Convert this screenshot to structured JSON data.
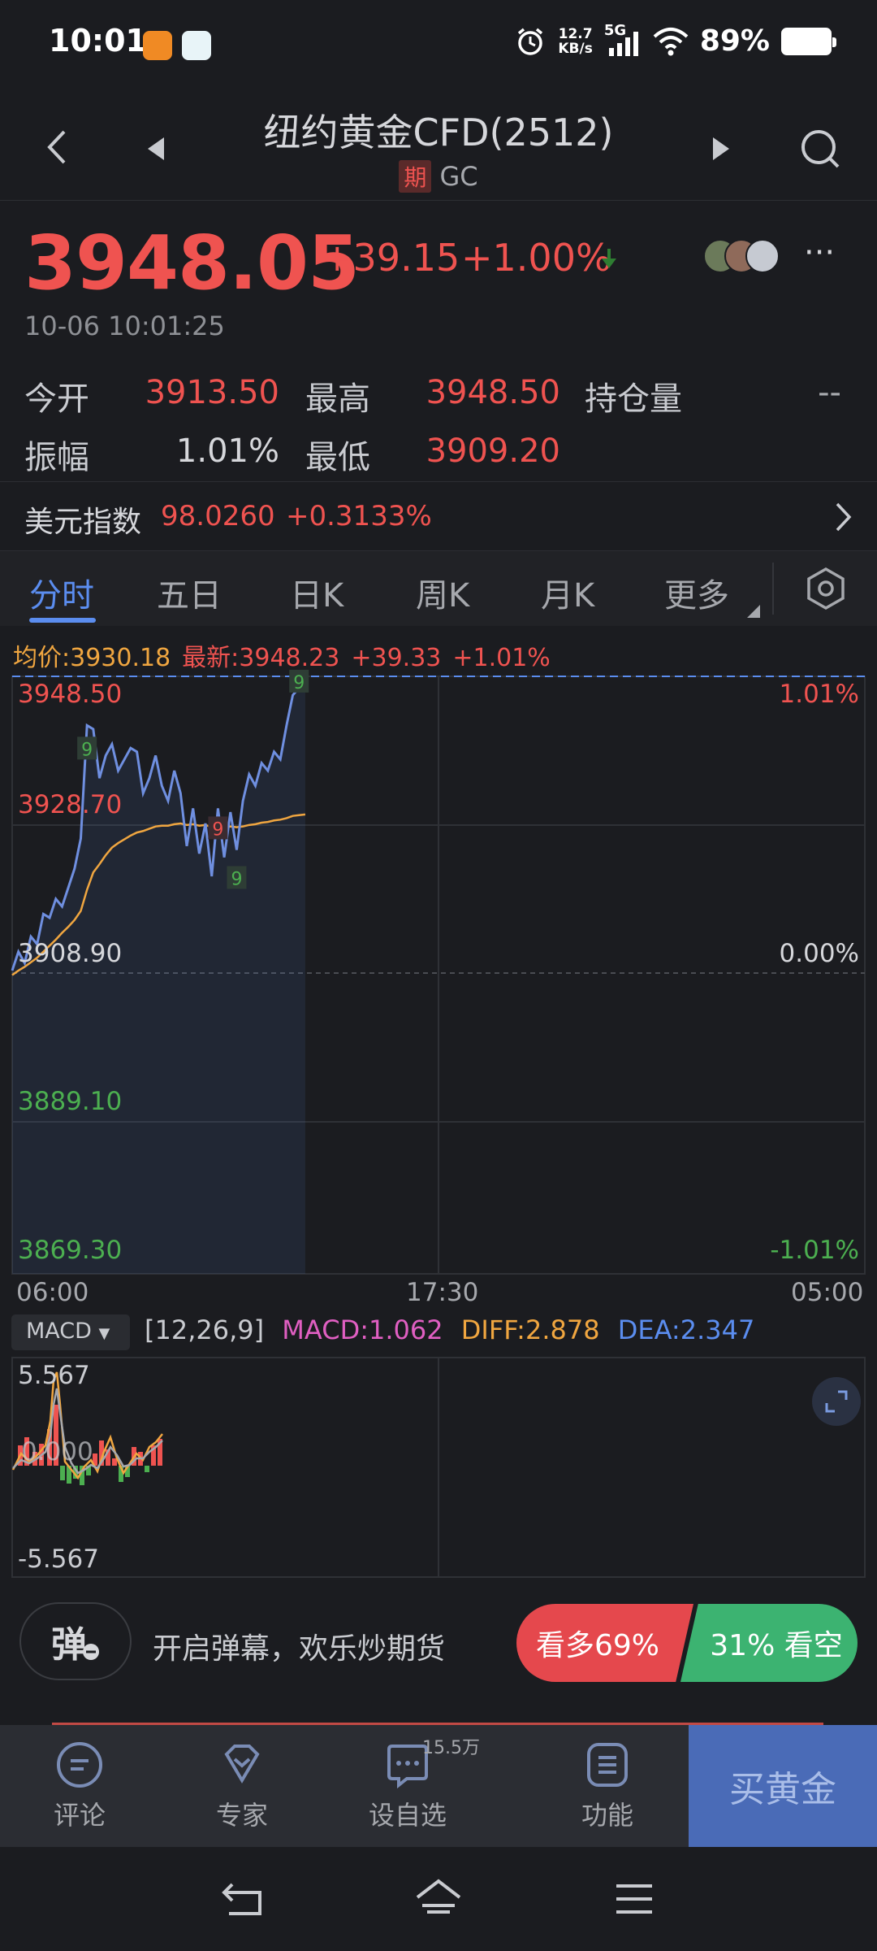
{
  "status_bar": {
    "time": "10:01",
    "net_speed_value": "12.7",
    "net_speed_unit": "KB/s",
    "network": "5G",
    "battery": "89%"
  },
  "header": {
    "title": "纽约黄金CFD(2512)",
    "tag": "期",
    "code": "GC"
  },
  "quote": {
    "last_price": "3948.05",
    "change": "+39.15",
    "change_pct": "+1.00%",
    "timestamp": "10-06 10:01:25",
    "stats": {
      "open_label": "今开",
      "open": "3913.50",
      "high_label": "最高",
      "high": "3948.50",
      "oi_label": "持仓量",
      "oi": "--",
      "amplitude_label": "振幅",
      "amplitude": "1.01%",
      "low_label": "最低",
      "low": "3909.20"
    }
  },
  "index": {
    "name": "美元指数",
    "value": "98.0260",
    "change_pct": "+0.3133%"
  },
  "tabs": [
    "分时",
    "五日",
    "日K",
    "周K",
    "月K",
    "更多"
  ],
  "chart": {
    "avg_price": "均价:3930.18",
    "latest": "最新:3948.23",
    "latest_change": "+39.33",
    "latest_pct": "+1.01%",
    "price_labels": [
      "3948.50",
      "3928.70",
      "3908.90",
      "3889.10",
      "3869.30"
    ],
    "pct_labels": [
      "1.01%",
      "0.00%",
      "-1.01%"
    ],
    "time_labels": [
      "06:00",
      "17:30",
      "05:00"
    ],
    "markers": [
      "9",
      "9",
      "9",
      "9"
    ]
  },
  "macd": {
    "selector": "MACD",
    "params": "[12,26,9]",
    "macd": "MACD:1.062",
    "diff": "DIFF:2.878",
    "dea": "DEA:2.347",
    "top": "5.567",
    "mid": "0.000",
    "bottom": "-5.567"
  },
  "danmaku": {
    "button": "弹",
    "text": "开启弹幕，欢乐炒期货"
  },
  "sentiment": {
    "bull": "看多69%",
    "bear": "31% 看空"
  },
  "actions": {
    "comment": "评论",
    "expert": "专家",
    "watchlist": "设自选",
    "watch_count": "15.5万",
    "functions": "功能",
    "buy": "买黄金"
  },
  "chart_data": {
    "type": "line",
    "x_ticks": [
      "06:00",
      "17:30",
      "05:00"
    ],
    "ylim": [
      3869.3,
      3948.5
    ],
    "prev_close": 3908.9,
    "series": [
      {
        "values": [
          3909.5,
          3912.0,
          3910.5,
          3914.0,
          3913.0,
          3917.0,
          3916.5,
          3919.0,
          3918.0,
          3920.5,
          3923.0,
          3927.0,
          3942.0,
          3941.5,
          3935.0,
          3938.0,
          3939.5,
          3936.0,
          3937.5,
          3939.0,
          3938.5,
          3933.0,
          3935.0,
          3938.0,
          3934.0,
          3932.0,
          3936.0,
          3933.0,
          3926.0,
          3931.0,
          3925.0,
          3929.0,
          3922.0,
          3931.0,
          3924.5,
          3930.5,
          3925.5,
          3932.0,
          3935.5,
          3934.0,
          3937.0,
          3936.0,
          3938.5,
          3937.5,
          3942.0,
          3946.0,
          3947.0,
          3948.2
        ]
      },
      {
        "values": [
          3908.9,
          3909.5,
          3910.0,
          3910.6,
          3911.2,
          3912.0,
          3912.8,
          3913.6,
          3914.5,
          3915.3,
          3916.2,
          3917.4,
          3920.2,
          3922.5,
          3923.6,
          3924.8,
          3925.8,
          3926.4,
          3926.9,
          3927.4,
          3927.8,
          3928.0,
          3928.3,
          3928.6,
          3928.7,
          3928.7,
          3928.9,
          3929.0,
          3928.8,
          3928.9,
          3928.7,
          3928.8,
          3928.5,
          3928.6,
          3928.5,
          3928.6,
          3928.5,
          3928.6,
          3928.8,
          3928.9,
          3929.1,
          3929.2,
          3929.4,
          3929.5,
          3929.7,
          3930.0,
          3930.1,
          3930.2
        ]
      }
    ]
  }
}
